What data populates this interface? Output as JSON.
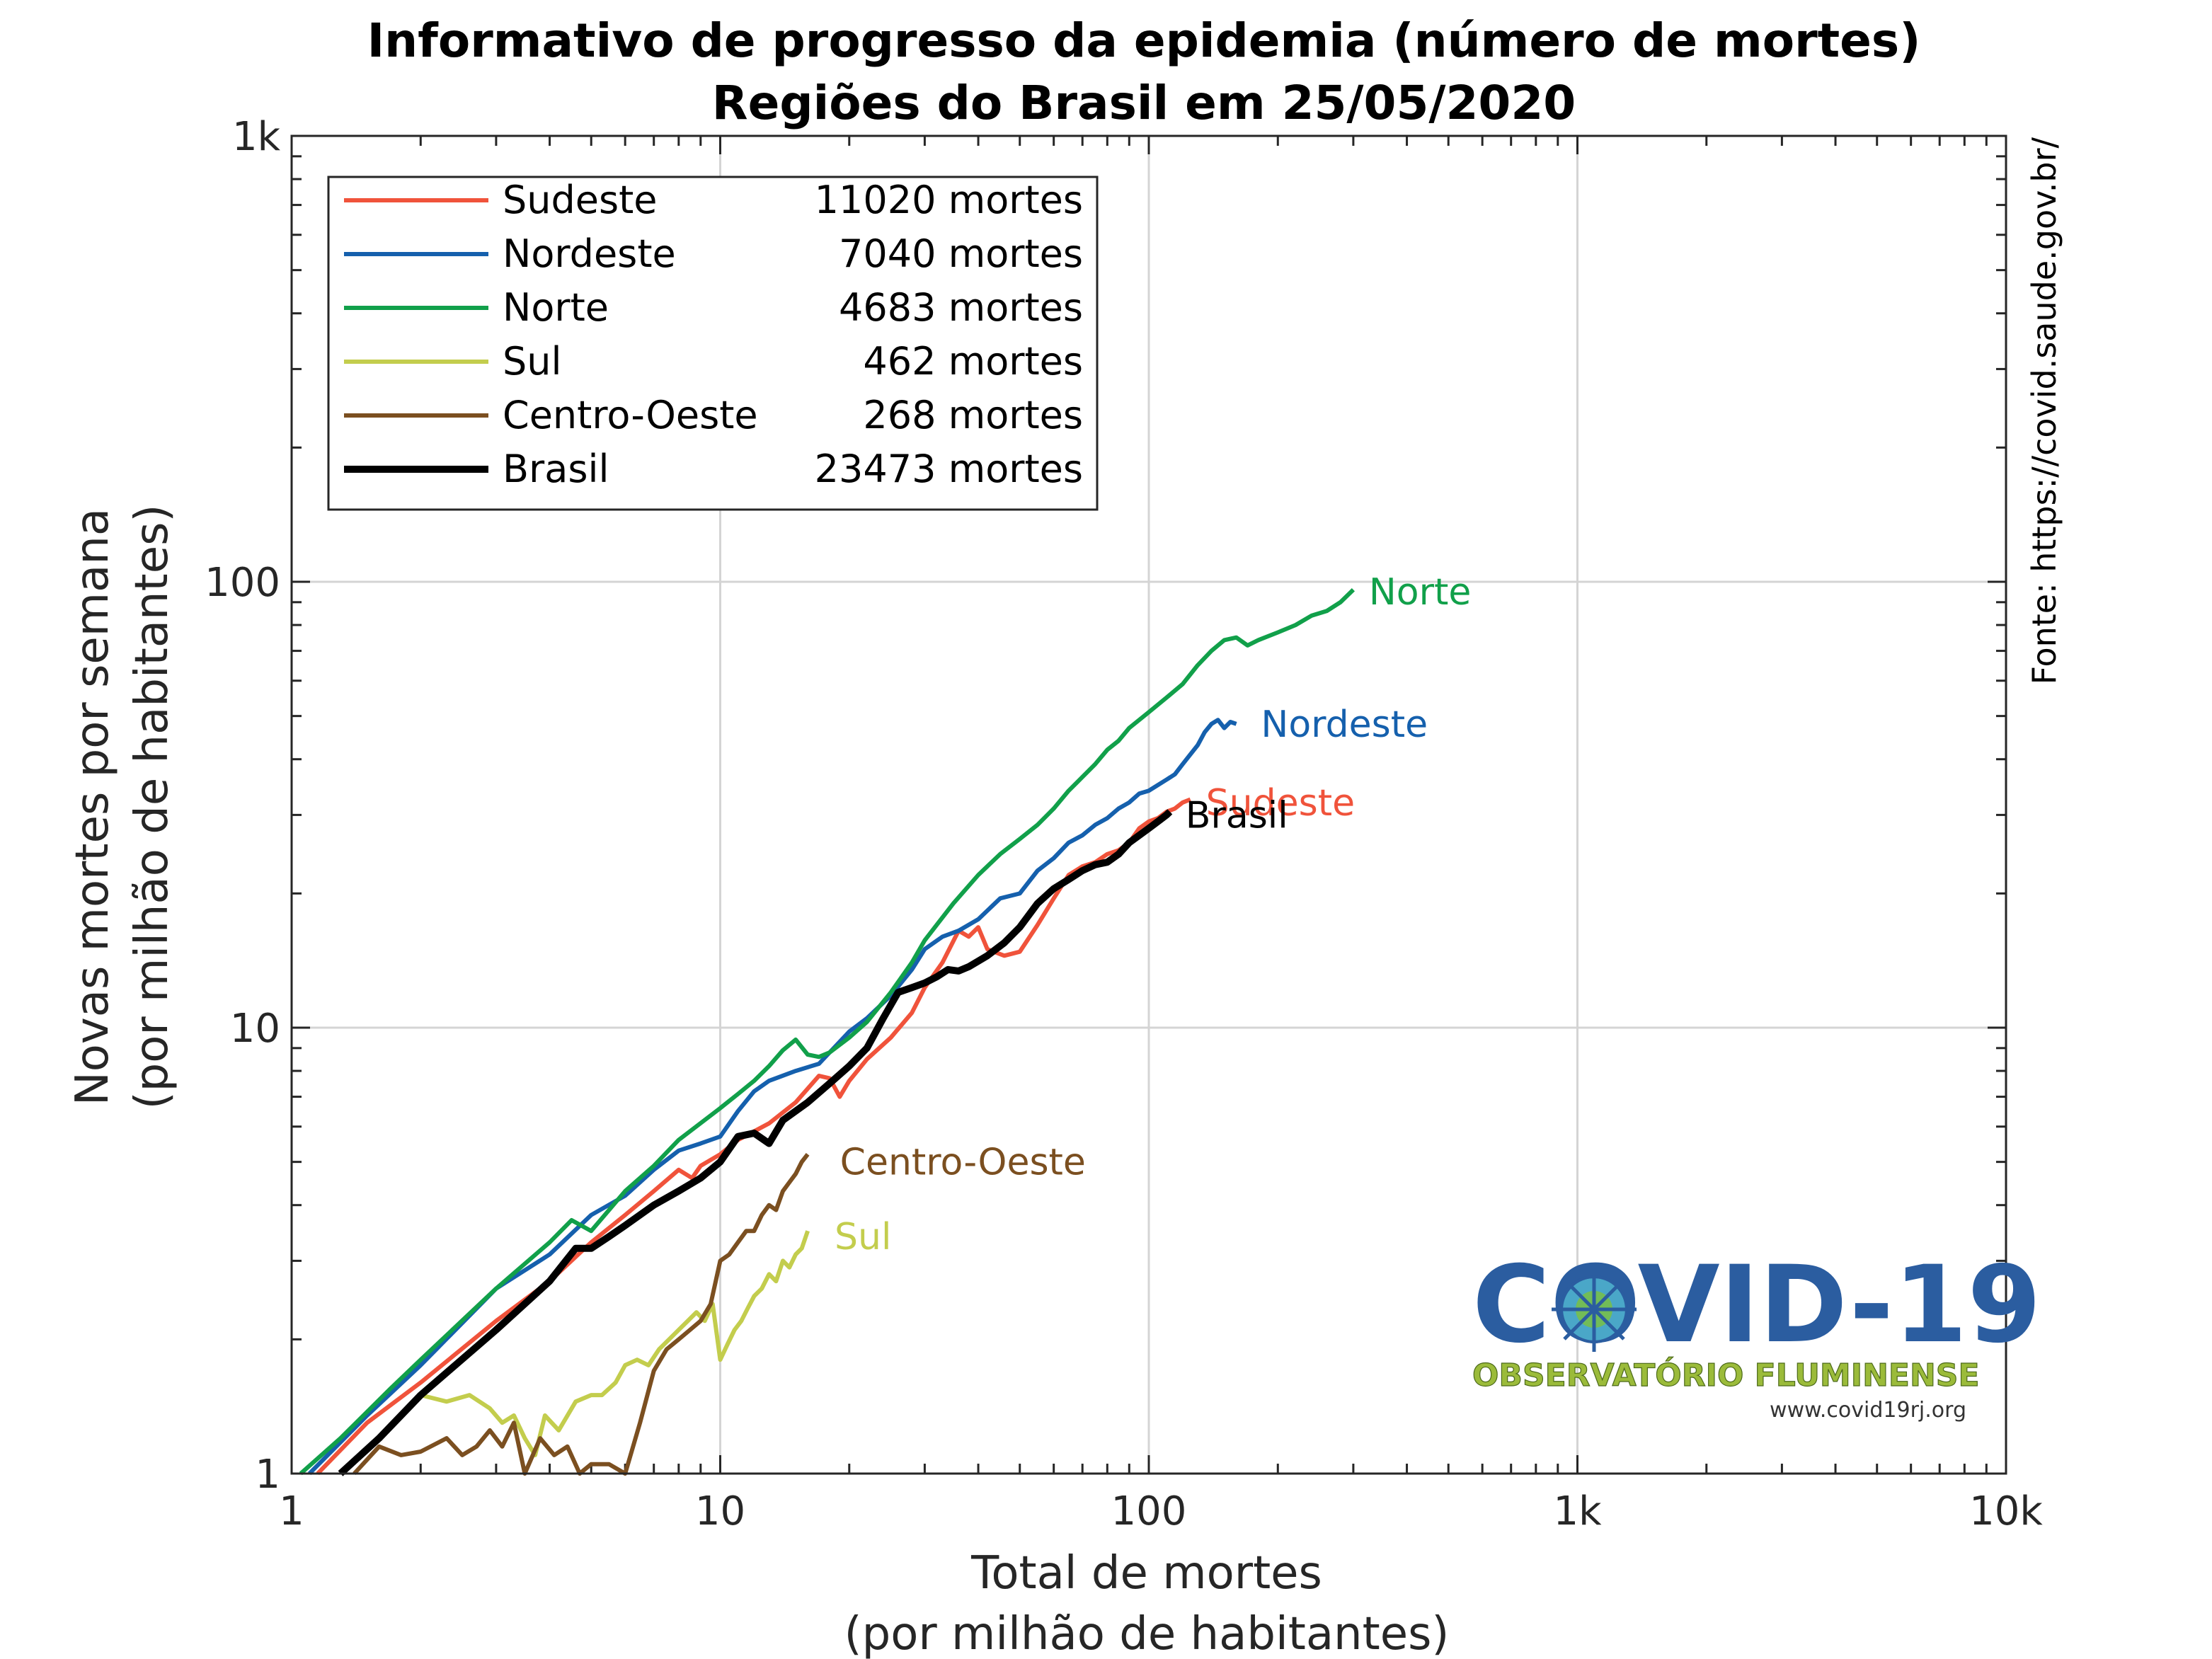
{
  "title_line1": "Informativo de progresso da epidemia (número de mortes)",
  "title_line2": "Regiões do Brasil em 25/05/2020",
  "source": "Fonte: https://covid.saude.gov.br/",
  "logo": {
    "title": "COVID-19",
    "subtitle": "OBSERVATÓRIO FLUMINENSE",
    "url": "www.covid19rj.org"
  },
  "chart_data": {
    "type": "line",
    "xlabel": [
      "Total de mortes",
      "(por milhão de habitantes)"
    ],
    "ylabel": [
      "Novas mortes por semana",
      "(por milhão de habitantes)"
    ],
    "xscale": "log",
    "yscale": "log",
    "xlim": [
      1,
      10000
    ],
    "ylim": [
      1,
      1000
    ],
    "xticks": [
      {
        "v": 1,
        "label": "1"
      },
      {
        "v": 10,
        "label": "10"
      },
      {
        "v": 100,
        "label": "100"
      },
      {
        "v": 1000,
        "label": "1k"
      },
      {
        "v": 10000,
        "label": "10k"
      }
    ],
    "yticks": [
      {
        "v": 1,
        "label": "1"
      },
      {
        "v": 10,
        "label": "10"
      },
      {
        "v": 100,
        "label": "100"
      },
      {
        "v": 1000,
        "label": "1k"
      }
    ],
    "grid": true,
    "legend_position": "top-left",
    "series": [
      {
        "name": "Sudeste",
        "legend_value": "11020 mortes",
        "color": "#f0533b",
        "label_x": 125,
        "label_y": 32,
        "points": [
          [
            1.15,
            1.0
          ],
          [
            1.5,
            1.3
          ],
          [
            2,
            1.6
          ],
          [
            3,
            2.2
          ],
          [
            4,
            2.7
          ],
          [
            5,
            3.3
          ],
          [
            6,
            3.8
          ],
          [
            7,
            4.3
          ],
          [
            8,
            4.8
          ],
          [
            8.6,
            4.6
          ],
          [
            9,
            4.9
          ],
          [
            10,
            5.2
          ],
          [
            11,
            5.6
          ],
          [
            13,
            6.1
          ],
          [
            15,
            6.8
          ],
          [
            17,
            7.8
          ],
          [
            18,
            7.7
          ],
          [
            19,
            7.0
          ],
          [
            20,
            7.6
          ],
          [
            22,
            8.5
          ],
          [
            25,
            9.5
          ],
          [
            28,
            10.8
          ],
          [
            30,
            12.3
          ],
          [
            33,
            14.0
          ],
          [
            36,
            16.5
          ],
          [
            38,
            16.0
          ],
          [
            40,
            16.8
          ],
          [
            42,
            15.0
          ],
          [
            46,
            14.5
          ],
          [
            50,
            14.8
          ],
          [
            55,
            17.0
          ],
          [
            60,
            19.5
          ],
          [
            65,
            22.0
          ],
          [
            70,
            23.0
          ],
          [
            75,
            23.5
          ],
          [
            80,
            24.5
          ],
          [
            85,
            25.0
          ],
          [
            90,
            26.0
          ],
          [
            95,
            28.0
          ],
          [
            100,
            29.0
          ],
          [
            105,
            29.5
          ],
          [
            110,
            30.5
          ],
          [
            115,
            31.0
          ],
          [
            120,
            32.0
          ],
          [
            125,
            32.5
          ]
        ]
      },
      {
        "name": "Nordeste",
        "legend_value": "7040 mortes",
        "color": "#1560ad",
        "label_x": 168,
        "label_y": 48,
        "points": [
          [
            1.1,
            1.0
          ],
          [
            1.5,
            1.35
          ],
          [
            2,
            1.75
          ],
          [
            3,
            2.6
          ],
          [
            4,
            3.1
          ],
          [
            5,
            3.8
          ],
          [
            6,
            4.2
          ],
          [
            7,
            4.8
          ],
          [
            8,
            5.3
          ],
          [
            9,
            5.5
          ],
          [
            10,
            5.7
          ],
          [
            11,
            6.5
          ],
          [
            12,
            7.2
          ],
          [
            13,
            7.6
          ],
          [
            15,
            8.0
          ],
          [
            17,
            8.3
          ],
          [
            20,
            9.8
          ],
          [
            22,
            10.5
          ],
          [
            25,
            11.8
          ],
          [
            28,
            13.5
          ],
          [
            30,
            15.0
          ],
          [
            33,
            16.0
          ],
          [
            36,
            16.5
          ],
          [
            40,
            17.5
          ],
          [
            45,
            19.5
          ],
          [
            50,
            20.0
          ],
          [
            55,
            22.5
          ],
          [
            60,
            24.0
          ],
          [
            65,
            26.0
          ],
          [
            70,
            27.0
          ],
          [
            75,
            28.5
          ],
          [
            80,
            29.5
          ],
          [
            85,
            31.0
          ],
          [
            90,
            32.0
          ],
          [
            95,
            33.5
          ],
          [
            100,
            34.0
          ],
          [
            105,
            35.0
          ],
          [
            110,
            36.0
          ],
          [
            115,
            37.0
          ],
          [
            120,
            39.0
          ],
          [
            125,
            41.0
          ],
          [
            130,
            43.0
          ],
          [
            135,
            46.0
          ],
          [
            140,
            48.0
          ],
          [
            145,
            49.0
          ],
          [
            150,
            47.0
          ],
          [
            155,
            48.5
          ],
          [
            160,
            48.0
          ]
        ]
      },
      {
        "name": "Norte",
        "legend_value": "4683 mortes",
        "color": "#11a04a",
        "label_x": 300,
        "label_y": 95,
        "points": [
          [
            1.05,
            1.0
          ],
          [
            1.3,
            1.2
          ],
          [
            1.7,
            1.55
          ],
          [
            2,
            1.8
          ],
          [
            3,
            2.6
          ],
          [
            4,
            3.3
          ],
          [
            4.5,
            3.7
          ],
          [
            5,
            3.5
          ],
          [
            6,
            4.3
          ],
          [
            7,
            4.9
          ],
          [
            8,
            5.6
          ],
          [
            10,
            6.6
          ],
          [
            11,
            7.1
          ],
          [
            12,
            7.6
          ],
          [
            13,
            8.2
          ],
          [
            14,
            8.9
          ],
          [
            15,
            9.4
          ],
          [
            16,
            8.7
          ],
          [
            17,
            8.6
          ],
          [
            18,
            8.8
          ],
          [
            20,
            9.5
          ],
          [
            22,
            10.3
          ],
          [
            25,
            12.0
          ],
          [
            28,
            14.0
          ],
          [
            30,
            15.7
          ],
          [
            35,
            19.0
          ],
          [
            40,
            22.0
          ],
          [
            45,
            24.5
          ],
          [
            50,
            26.5
          ],
          [
            55,
            28.5
          ],
          [
            60,
            31.0
          ],
          [
            65,
            34.0
          ],
          [
            70,
            36.5
          ],
          [
            75,
            39.0
          ],
          [
            80,
            42.0
          ],
          [
            85,
            44.0
          ],
          [
            90,
            47.0
          ],
          [
            100,
            51.0
          ],
          [
            110,
            55.0
          ],
          [
            120,
            59.0
          ],
          [
            130,
            65.0
          ],
          [
            140,
            70.0
          ],
          [
            150,
            74.0
          ],
          [
            160,
            75.0
          ],
          [
            170,
            72.0
          ],
          [
            180,
            74.0
          ],
          [
            200,
            77.0
          ],
          [
            220,
            80.0
          ],
          [
            240,
            84.0
          ],
          [
            260,
            86.0
          ],
          [
            280,
            90.0
          ],
          [
            300,
            96.0
          ]
        ]
      },
      {
        "name": "Sul",
        "legend_value": "462 mortes",
        "color": "#c3cd4d",
        "label_x": 17,
        "label_y": 3.4,
        "points": [
          [
            2.0,
            1.5
          ],
          [
            2.3,
            1.45
          ],
          [
            2.6,
            1.5
          ],
          [
            2.9,
            1.4
          ],
          [
            3.1,
            1.3
          ],
          [
            3.3,
            1.35
          ],
          [
            3.5,
            1.2
          ],
          [
            3.7,
            1.1
          ],
          [
            3.9,
            1.35
          ],
          [
            4.2,
            1.25
          ],
          [
            4.6,
            1.45
          ],
          [
            5.0,
            1.5
          ],
          [
            5.3,
            1.5
          ],
          [
            5.7,
            1.6
          ],
          [
            6.0,
            1.75
          ],
          [
            6.4,
            1.8
          ],
          [
            6.8,
            1.75
          ],
          [
            7.2,
            1.9
          ],
          [
            7.6,
            2.0
          ],
          [
            8.0,
            2.1
          ],
          [
            8.4,
            2.2
          ],
          [
            8.8,
            2.3
          ],
          [
            9.2,
            2.2
          ],
          [
            9.6,
            2.4
          ],
          [
            10.0,
            1.8
          ],
          [
            10.4,
            1.95
          ],
          [
            10.8,
            2.1
          ],
          [
            11.2,
            2.2
          ],
          [
            11.6,
            2.35
          ],
          [
            12.0,
            2.5
          ],
          [
            12.5,
            2.6
          ],
          [
            13.0,
            2.8
          ],
          [
            13.5,
            2.7
          ],
          [
            14.0,
            3.0
          ],
          [
            14.5,
            2.9
          ],
          [
            15.0,
            3.1
          ],
          [
            15.5,
            3.2
          ],
          [
            16.0,
            3.5
          ]
        ]
      },
      {
        "name": "Centro-Oeste",
        "legend_value": "268 mortes",
        "color": "#7b4f20",
        "label_x": 17.5,
        "label_y": 5.0,
        "points": [
          [
            1.4,
            1.0
          ],
          [
            1.6,
            1.15
          ],
          [
            1.8,
            1.1
          ],
          [
            2.0,
            1.12
          ],
          [
            2.3,
            1.2
          ],
          [
            2.5,
            1.1
          ],
          [
            2.7,
            1.15
          ],
          [
            2.9,
            1.25
          ],
          [
            3.1,
            1.15
          ],
          [
            3.3,
            1.3
          ],
          [
            3.5,
            1.0
          ],
          [
            3.8,
            1.2
          ],
          [
            4.1,
            1.1
          ],
          [
            4.4,
            1.15
          ],
          [
            4.7,
            1.0
          ],
          [
            5.0,
            1.05
          ],
          [
            5.5,
            1.05
          ],
          [
            6.0,
            1.0
          ],
          [
            6.5,
            1.3
          ],
          [
            7.0,
            1.7
          ],
          [
            7.5,
            1.9
          ],
          [
            8.0,
            2.0
          ],
          [
            8.5,
            2.1
          ],
          [
            9.0,
            2.2
          ],
          [
            9.5,
            2.4
          ],
          [
            10.0,
            3.0
          ],
          [
            10.5,
            3.1
          ],
          [
            11.0,
            3.3
          ],
          [
            11.5,
            3.5
          ],
          [
            12.0,
            3.5
          ],
          [
            12.5,
            3.8
          ],
          [
            13.0,
            4.0
          ],
          [
            13.5,
            3.9
          ],
          [
            14.0,
            4.3
          ],
          [
            14.5,
            4.5
          ],
          [
            15.0,
            4.7
          ],
          [
            15.5,
            5.0
          ],
          [
            16.0,
            5.2
          ]
        ]
      },
      {
        "name": "Brasil",
        "legend_value": "23473 mortes",
        "color": "#000000",
        "label_x": 112,
        "label_y": 30,
        "points": [
          [
            1.3,
            1.0
          ],
          [
            1.6,
            1.2
          ],
          [
            2,
            1.5
          ],
          [
            3,
            2.1
          ],
          [
            4,
            2.7
          ],
          [
            4.6,
            3.2
          ],
          [
            5,
            3.2
          ],
          [
            5.5,
            3.4
          ],
          [
            6,
            3.6
          ],
          [
            7,
            4.0
          ],
          [
            8,
            4.3
          ],
          [
            9,
            4.6
          ],
          [
            10,
            5.0
          ],
          [
            11,
            5.7
          ],
          [
            12,
            5.8
          ],
          [
            13,
            5.5
          ],
          [
            14,
            6.2
          ],
          [
            16,
            6.8
          ],
          [
            18,
            7.5
          ],
          [
            20,
            8.2
          ],
          [
            22,
            9.0
          ],
          [
            24,
            10.5
          ],
          [
            26,
            12.0
          ],
          [
            28,
            12.3
          ],
          [
            30,
            12.6
          ],
          [
            32,
            13.0
          ],
          [
            34,
            13.5
          ],
          [
            36,
            13.4
          ],
          [
            38,
            13.7
          ],
          [
            42,
            14.5
          ],
          [
            46,
            15.5
          ],
          [
            50,
            16.8
          ],
          [
            55,
            19.0
          ],
          [
            60,
            20.5
          ],
          [
            65,
            21.5
          ],
          [
            70,
            22.5
          ],
          [
            75,
            23.2
          ],
          [
            80,
            23.5
          ],
          [
            85,
            24.5
          ],
          [
            90,
            26.0
          ],
          [
            95,
            27.0
          ],
          [
            100,
            28.0
          ],
          [
            105,
            29.0
          ],
          [
            110,
            30.0
          ],
          [
            112,
            30.5
          ]
        ]
      }
    ]
  }
}
